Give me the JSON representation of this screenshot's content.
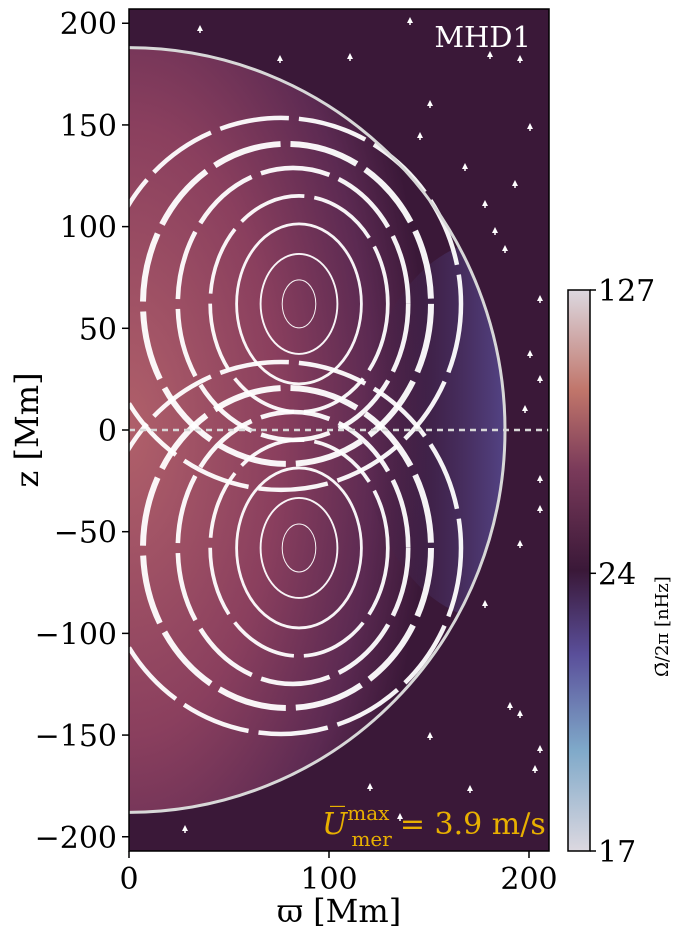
{
  "chart_data": {
    "type": "heatmap",
    "panel_label": "MHD1",
    "xlabel": "ϖ [Mm]",
    "ylabel": "z [Mm]",
    "xlim": [
      0,
      210
    ],
    "ylim": [
      -207,
      207
    ],
    "xticks": [
      0,
      100,
      200
    ],
    "xtick_labels": [
      "0",
      "100",
      "200"
    ],
    "yticks": [
      200,
      150,
      100,
      50,
      0,
      -50,
      -100,
      -150,
      -200
    ],
    "ytick_labels": [
      "200",
      "150",
      "100",
      "50",
      "0",
      "−50",
      "−100",
      "−150",
      "−200"
    ],
    "star_radius": 188,
    "equator_z": 0,
    "colorbar": {
      "label": "Ω̄/2π [nHz]",
      "tick_labels": [
        "127",
        "24",
        "17"
      ],
      "ticks": [
        127,
        24,
        17
      ],
      "colors": [
        "#dcd8e0",
        "#7fa9c9",
        "#3e2858",
        "#a4566b",
        "#c6886e",
        "#dcd8e0"
      ]
    },
    "annotation": {
      "text": "U̅",
      "sup": "max",
      "sub": "mer",
      "value": "= 3.9 m/s",
      "color": "#e8b000"
    },
    "background_color": "#3a1838",
    "circulation_cells": [
      {
        "center_x": 85,
        "center_z": 62
      },
      {
        "center_x": 85,
        "center_z": -58
      }
    ]
  }
}
